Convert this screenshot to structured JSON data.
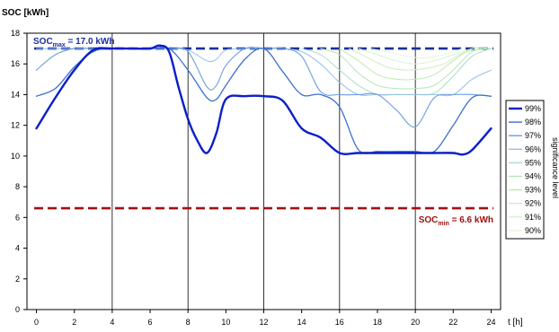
{
  "chart_data": {
    "type": "line",
    "ylabel": "SOC [kWh]",
    "xlabel": "t [h]",
    "xlim": [
      -0.5,
      24.5
    ],
    "ylim": [
      0,
      18
    ],
    "xticks": [
      0,
      2,
      4,
      6,
      8,
      10,
      12,
      14,
      16,
      18,
      20,
      22,
      24
    ],
    "yticks": [
      0,
      2,
      4,
      6,
      8,
      10,
      12,
      14,
      16,
      18
    ],
    "grid": "vertical",
    "legend": {
      "title": "significance level",
      "placement": "right"
    },
    "reference_lines": [
      {
        "value": 17.0,
        "color": "#1a2f9c",
        "label": {
          "main": "SOC",
          "sub": "max",
          "rest": " = 17.0 kWh"
        }
      },
      {
        "value": 6.6,
        "color": "#a01010",
        "label": {
          "main": "SOC",
          "sub": "min",
          "rest": " = 6.6 kWh"
        }
      }
    ],
    "series": [
      {
        "name": "99%",
        "color": "#0a1fc8",
        "width": 2.4,
        "x": [
          0,
          1,
          2,
          3,
          4,
          5,
          6,
          6.5,
          7,
          7.5,
          8,
          8.5,
          9,
          9.5,
          10,
          11,
          12,
          13,
          14,
          15,
          16,
          17,
          18,
          19,
          20,
          21,
          22,
          22.5,
          23,
          24
        ],
        "y": [
          11.8,
          13.8,
          15.6,
          16.9,
          17.0,
          17.0,
          17.0,
          17.2,
          16.8,
          14.5,
          12.4,
          11.0,
          10.2,
          11.5,
          13.7,
          13.9,
          13.9,
          13.6,
          11.8,
          11.2,
          10.2,
          10.2,
          10.2,
          10.2,
          10.2,
          10.2,
          10.2,
          10.1,
          10.4,
          11.8
        ]
      },
      {
        "name": "98%",
        "color": "#3b6fd0",
        "width": 1.3,
        "x": [
          0,
          1,
          2,
          3,
          4,
          6,
          7,
          8,
          9,
          9.5,
          10,
          11,
          12,
          13,
          14,
          15,
          16,
          17,
          18,
          19,
          20,
          21,
          22,
          23,
          24
        ],
        "y": [
          13.9,
          14.4,
          15.8,
          16.8,
          17.0,
          17.0,
          17.0,
          15.6,
          13.8,
          13.7,
          14.6,
          16.3,
          17.0,
          15.5,
          14.0,
          14.0,
          13.2,
          10.4,
          10.3,
          10.3,
          10.3,
          10.3,
          12.0,
          13.8,
          13.9
        ]
      },
      {
        "name": "97%",
        "color": "#6a9fe0",
        "width": 1.1,
        "x": [
          0,
          1,
          2,
          3,
          4,
          6,
          7,
          8,
          9,
          9.5,
          10,
          11,
          12,
          13,
          14,
          15,
          16,
          17,
          18,
          19,
          20,
          21,
          22,
          23,
          24
        ],
        "y": [
          15.6,
          16.6,
          17.0,
          17.0,
          17.0,
          17.0,
          17.0,
          16.8,
          14.5,
          14.6,
          15.9,
          17.0,
          17.0,
          17.0,
          16.5,
          14.2,
          14.0,
          14.0,
          14.0,
          13.0,
          11.9,
          13.8,
          14.0,
          14.0,
          13.9
        ]
      },
      {
        "name": "96%",
        "color": "#93c0ea",
        "width": 1,
        "x": [
          0,
          2,
          4,
          6,
          7,
          8,
          9,
          9.5,
          10,
          11,
          12,
          13,
          14,
          15,
          16,
          17,
          18,
          19,
          20,
          21,
          22,
          23,
          24
        ],
        "y": [
          17.0,
          17.0,
          17.0,
          17.0,
          17.0,
          16.9,
          16.2,
          16.3,
          16.9,
          17.0,
          17.0,
          17.0,
          16.8,
          16.0,
          14.8,
          14.0,
          14.0,
          14.0,
          14.0,
          14.0,
          14.0,
          15.0,
          15.6
        ]
      },
      {
        "name": "95%",
        "color": "#a9dec6",
        "width": 1,
        "x": [
          14,
          15,
          16,
          17,
          18,
          19,
          20,
          21,
          22,
          23,
          24
        ],
        "y": [
          17.0,
          16.6,
          15.6,
          14.6,
          14.0,
          14.0,
          14.0,
          14.1,
          15.2,
          16.5,
          17.0
        ]
      },
      {
        "name": "94%",
        "color": "#b4e5b8",
        "width": 1,
        "x": [
          15,
          16,
          17,
          18,
          19,
          20,
          21,
          22,
          23,
          24
        ],
        "y": [
          17.0,
          16.6,
          15.4,
          14.6,
          14.4,
          14.4,
          14.6,
          15.6,
          16.8,
          17.0
        ]
      },
      {
        "name": "93%",
        "color": "#bfeab0",
        "width": 1,
        "x": [
          16,
          17,
          18,
          19,
          20,
          21,
          22,
          23,
          24
        ],
        "y": [
          17.0,
          16.2,
          15.3,
          15.0,
          15.0,
          15.3,
          16.2,
          17.0,
          17.0
        ]
      },
      {
        "name": "92%",
        "color": "#cbeec2",
        "width": 1,
        "x": [
          16.5,
          17.5,
          18.5,
          19.5,
          20.5,
          21.5,
          22.5,
          23.5
        ],
        "y": [
          17.0,
          16.4,
          15.8,
          15.6,
          15.7,
          16.0,
          16.7,
          17.0
        ]
      },
      {
        "name": "91%",
        "color": "#d6f2cf",
        "width": 1,
        "x": [
          17,
          18,
          19,
          20,
          21,
          22,
          23
        ],
        "y": [
          17.0,
          16.6,
          16.2,
          16.0,
          16.2,
          16.6,
          17.0
        ]
      },
      {
        "name": "90%",
        "color": "#e3f6dc",
        "width": 1,
        "x": [
          17.5,
          18.5,
          19.5,
          20.5,
          21.5,
          22.5
        ],
        "y": [
          17.0,
          16.8,
          16.5,
          16.4,
          16.6,
          17.0
        ]
      }
    ]
  }
}
